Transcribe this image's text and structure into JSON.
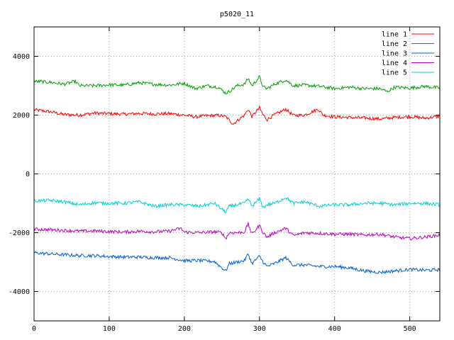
{
  "chart_data": {
    "type": "line",
    "title": "p5020_11",
    "xlabel": "",
    "ylabel": "",
    "xlim": [
      0,
      540
    ],
    "ylim": [
      -5000,
      5000
    ],
    "xticks": [
      0,
      100,
      200,
      300,
      400,
      500
    ],
    "yticks": [
      -4000,
      -2000,
      0,
      2000,
      4000
    ],
    "grid": true,
    "legend": "top-right",
    "series": [
      {
        "name": "line 1",
        "color": "#ff0000",
        "x": [
          0,
          20,
          40,
          60,
          80,
          100,
          120,
          140,
          160,
          180,
          200,
          215,
          230,
          245,
          255,
          265,
          275,
          280,
          285,
          290,
          300,
          305,
          310,
          320,
          335,
          345,
          360,
          378,
          385,
          400,
          420,
          440,
          460,
          480,
          500,
          520,
          540
        ],
        "y": [
          2180,
          2120,
          2020,
          2000,
          2070,
          2050,
          2030,
          2060,
          2040,
          2050,
          2000,
          1940,
          1980,
          1990,
          1950,
          1700,
          1900,
          2000,
          2200,
          1950,
          2250,
          2000,
          1850,
          2010,
          2200,
          1990,
          2000,
          2200,
          2000,
          1940,
          1920,
          1900,
          1870,
          1920,
          1950,
          1900,
          1960
        ]
      },
      {
        "name": "line 2",
        "color": "#00a000",
        "x": [
          0,
          20,
          40,
          55,
          60,
          80,
          100,
          120,
          140,
          160,
          180,
          200,
          215,
          230,
          245,
          255,
          260,
          270,
          280,
          285,
          290,
          300,
          305,
          310,
          320,
          335,
          345,
          360,
          380,
          400,
          420,
          440,
          460,
          470,
          480,
          500,
          520,
          540
        ],
        "y": [
          3150,
          3120,
          3050,
          3150,
          3000,
          3000,
          3030,
          3020,
          3100,
          3050,
          3020,
          3080,
          2900,
          3000,
          2950,
          2750,
          2800,
          3000,
          3050,
          3250,
          3000,
          3300,
          2950,
          2900,
          3050,
          3200,
          3000,
          3020,
          2980,
          2900,
          2950,
          2900,
          2900,
          2800,
          2950,
          2920,
          2980,
          2920
        ]
      },
      {
        "name": "line 3",
        "color": "#0060d0",
        "x": [
          0,
          20,
          40,
          60,
          80,
          100,
          120,
          140,
          160,
          180,
          200,
          220,
          240,
          255,
          260,
          270,
          280,
          285,
          290,
          300,
          305,
          310,
          320,
          335,
          345,
          360,
          380,
          400,
          420,
          440,
          460,
          480,
          500,
          520,
          540
        ],
        "y": [
          -2680,
          -2720,
          -2750,
          -2780,
          -2780,
          -2810,
          -2830,
          -2830,
          -2850,
          -2850,
          -2950,
          -2950,
          -2980,
          -3300,
          -3050,
          -3000,
          -2950,
          -2720,
          -3050,
          -2800,
          -3000,
          -3150,
          -3050,
          -2850,
          -3100,
          -3100,
          -3150,
          -3150,
          -3200,
          -3300,
          -3350,
          -3300,
          -3250,
          -3280,
          -3260
        ]
      },
      {
        "name": "line 4",
        "color": "#c000c0",
        "x": [
          0,
          20,
          40,
          60,
          80,
          100,
          120,
          140,
          160,
          180,
          195,
          200,
          220,
          240,
          250,
          255,
          260,
          270,
          280,
          285,
          290,
          300,
          305,
          310,
          320,
          335,
          345,
          360,
          380,
          400,
          420,
          440,
          460,
          480,
          500,
          520,
          540
        ],
        "y": [
          -1880,
          -1900,
          -1920,
          -1950,
          -1940,
          -1960,
          -1980,
          -1950,
          -1970,
          -1950,
          -1850,
          -1980,
          -2000,
          -1970,
          -2000,
          -2200,
          -2000,
          -2000,
          -1980,
          -1700,
          -2050,
          -1750,
          -2000,
          -2150,
          -2000,
          -1850,
          -2100,
          -2000,
          -2020,
          -2050,
          -2050,
          -2080,
          -2050,
          -2150,
          -2200,
          -2150,
          -2080
        ]
      },
      {
        "name": "line 5",
        "color": "#00d0d0",
        "x": [
          0,
          20,
          40,
          60,
          80,
          100,
          120,
          140,
          160,
          180,
          200,
          220,
          240,
          255,
          260,
          270,
          280,
          285,
          290,
          300,
          305,
          310,
          320,
          335,
          345,
          360,
          380,
          400,
          420,
          440,
          460,
          480,
          500,
          520,
          540
        ],
        "y": [
          -920,
          -900,
          -950,
          -1050,
          -980,
          -1000,
          -1000,
          -950,
          -1100,
          -1050,
          -1050,
          -1100,
          -1000,
          -1300,
          -1100,
          -1050,
          -1000,
          -850,
          -1100,
          -850,
          -1150,
          -1050,
          -1000,
          -800,
          -1000,
          -950,
          -1100,
          -1050,
          -1050,
          -1000,
          -1000,
          -1050,
          -1000,
          -1000,
          -1050
        ]
      }
    ]
  }
}
